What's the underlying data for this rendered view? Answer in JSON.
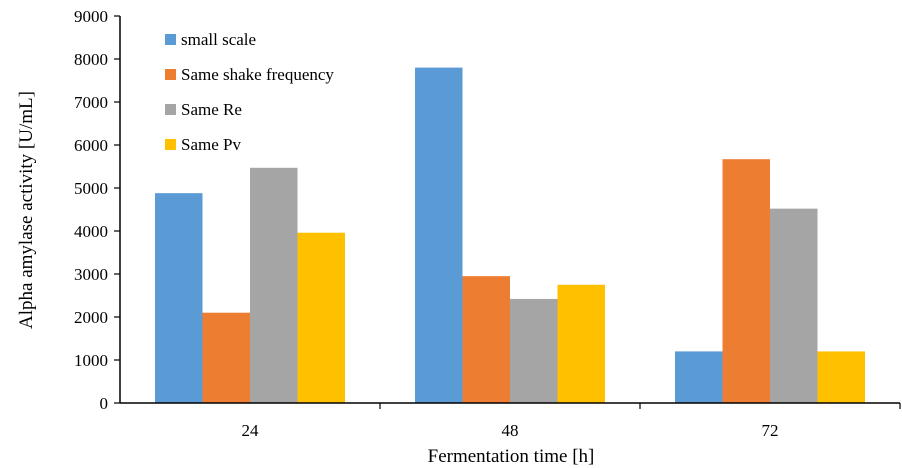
{
  "chart_data": {
    "type": "bar",
    "title": "",
    "xlabel": "Fermentation time [h]",
    "ylabel": "Alpha amylase activity [U/mL]",
    "categories": [
      "24",
      "48",
      "72"
    ],
    "ylim": [
      0,
      9000
    ],
    "yticks": [
      "0",
      "1000",
      "2000",
      "3000",
      "4000",
      "5000",
      "6000",
      "7000",
      "8000",
      "9000"
    ],
    "grid": false,
    "legend_position": "top-left",
    "series": [
      {
        "name": "small scale",
        "color": "#5b9bd5",
        "values": [
          4880,
          7800,
          1200
        ]
      },
      {
        "name": "Same shake frequency",
        "color": "#ed7d31",
        "values": [
          2100,
          2950,
          5670
        ]
      },
      {
        "name": "Same Re",
        "color": "#a5a5a5",
        "values": [
          5470,
          2420,
          4520
        ]
      },
      {
        "name": "Same Pv",
        "color": "#ffc000",
        "values": [
          3960,
          2750,
          1200
        ]
      }
    ]
  }
}
